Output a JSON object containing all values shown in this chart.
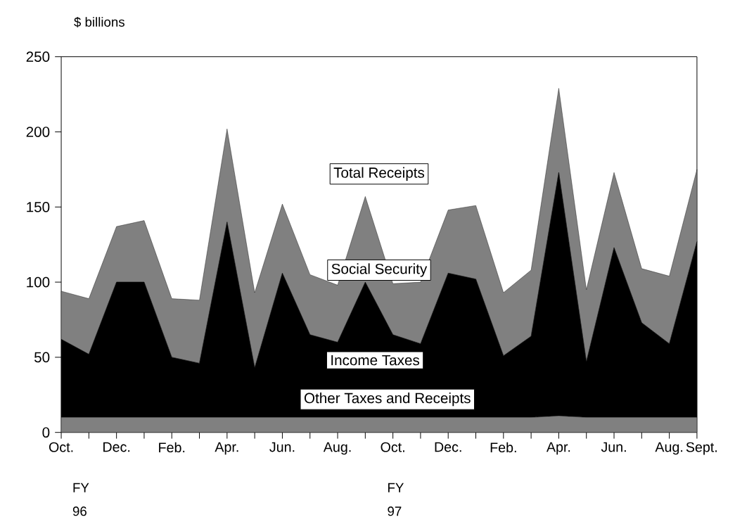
{
  "chart_data": {
    "type": "area",
    "stacked": true,
    "ylabel": "$ billions",
    "categories": [
      "Oct.",
      null,
      "Dec.",
      null,
      "Feb.",
      null,
      "Apr.",
      null,
      "Jun.",
      null,
      "Aug.",
      null,
      "Oct.",
      null,
      "Dec.",
      null,
      "Feb.",
      null,
      "Apr.",
      null,
      "Jun.",
      null,
      "Aug.",
      "Sept."
    ],
    "series": [
      {
        "name": "Other Taxes and Receipts",
        "color": "#808080",
        "values": [
          10,
          10,
          10,
          10,
          10,
          10,
          10,
          10,
          10,
          10,
          10,
          10,
          10,
          10,
          10,
          10,
          10,
          10,
          11,
          10,
          10,
          10,
          10,
          10
        ]
      },
      {
        "name": "Income Taxes",
        "color": "#000000",
        "values": [
          52,
          42,
          90,
          90,
          40,
          36,
          130,
          33,
          96,
          55,
          50,
          90,
          55,
          49,
          96,
          92,
          41,
          54,
          162,
          37,
          113,
          63,
          49,
          117
        ]
      },
      {
        "name": "Social Security",
        "color": "#808080",
        "values": [
          32,
          37,
          37,
          41,
          39,
          42,
          62,
          50,
          46,
          40,
          38,
          57,
          34,
          41,
          42,
          49,
          42,
          44,
          56,
          48,
          50,
          36,
          45,
          48
        ]
      }
    ],
    "ylim": [
      0,
      250
    ],
    "yticks": [
      0,
      50,
      100,
      150,
      200,
      250
    ],
    "annotations": [
      "Total Receipts",
      "FY 96",
      "FY 97"
    ]
  }
}
